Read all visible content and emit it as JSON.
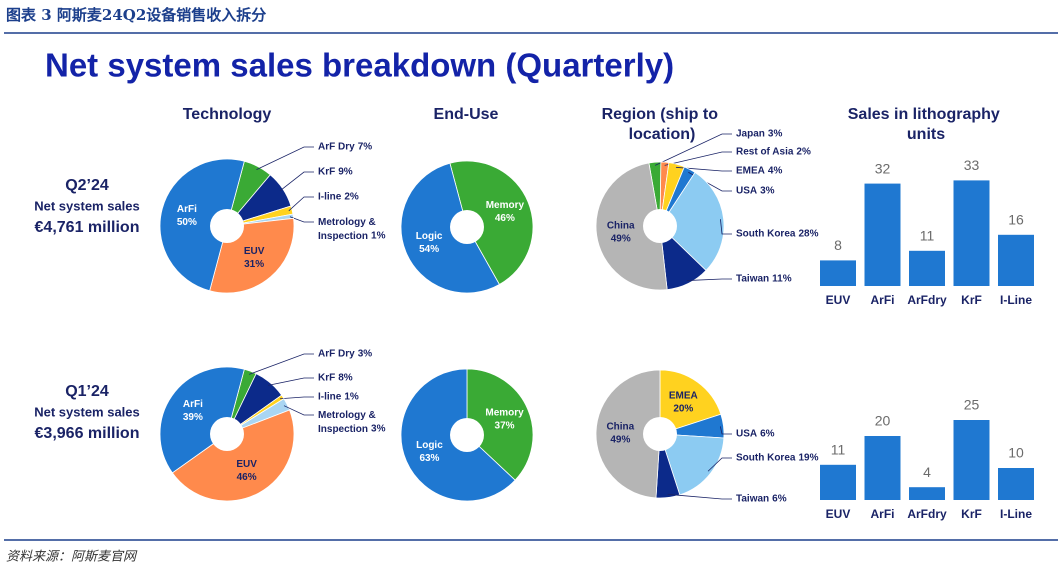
{
  "header": "图表 3  阿斯麦24Q2设备销售收入拆分",
  "title": "Net system sales breakdown (Quarterly)",
  "source": "资料来源：阿斯麦官网",
  "column_titles": [
    "Technology",
    "End-Use",
    "Region (ship to location)",
    "Sales in lithography units"
  ],
  "periods": [
    {
      "quarter": "Q2’24",
      "label": "Net system sales",
      "amount": "€4,761 million"
    },
    {
      "quarter": "Q1’24",
      "label": "Net system sales",
      "amount": "€3,966 million"
    }
  ],
  "chart_data": [
    {
      "type": "pie",
      "categories": [
        "ArF Dry",
        "KrF",
        "I-line",
        "Metrology & Inspection",
        "EUV",
        "ArFi"
      ],
      "values": [
        7,
        9,
        2,
        1,
        31,
        50
      ],
      "value_labels": [
        "7%",
        "9%",
        "2%",
        "1%",
        "31%",
        "50%"
      ],
      "colors": [
        "#3aaa35",
        "#0c2a8a",
        "#ffd21f",
        "#a9d5f2",
        "#ff8a4c",
        "#1f78d1"
      ]
    },
    {
      "type": "pie",
      "categories": [
        "Memory",
        "Logic"
      ],
      "values": [
        46,
        54
      ],
      "value_labels": [
        "46%",
        "54%"
      ],
      "colors": [
        "#3aaa35",
        "#1f78d1"
      ]
    },
    {
      "type": "pie",
      "categories": [
        "Japan",
        "Rest of Asia",
        "EMEA",
        "USA",
        "South Korea",
        "Taiwan",
        "China"
      ],
      "values": [
        3,
        2,
        4,
        3,
        28,
        11,
        49
      ],
      "value_labels": [
        "3%",
        "2%",
        "4%",
        "3%",
        "28%",
        "11%",
        "49%"
      ],
      "colors": [
        "#3aaa35",
        "#ff8a4c",
        "#ffd21f",
        "#1f78d1",
        "#8ccbf2",
        "#0c2a8a",
        "#b5b5b5"
      ]
    },
    {
      "type": "bar",
      "categories": [
        "EUV",
        "ArFi",
        "ArFdry",
        "KrF",
        "I-Line"
      ],
      "values": [
        8,
        32,
        11,
        33,
        16
      ],
      "color": "#1f78d1"
    },
    {
      "type": "pie",
      "categories": [
        "ArF Dry",
        "KrF",
        "I-line",
        "Metrology & Inspection",
        "EUV",
        "ArFi"
      ],
      "values": [
        3,
        8,
        1,
        3,
        46,
        39
      ],
      "value_labels": [
        "3%",
        "8%",
        "1%",
        "3%",
        "46%",
        "39%"
      ],
      "colors": [
        "#3aaa35",
        "#0c2a8a",
        "#ffd21f",
        "#a9d5f2",
        "#ff8a4c",
        "#1f78d1"
      ]
    },
    {
      "type": "pie",
      "categories": [
        "Memory",
        "Logic"
      ],
      "values": [
        37,
        63
      ],
      "value_labels": [
        "37%",
        "63%"
      ],
      "colors": [
        "#3aaa35",
        "#1f78d1"
      ]
    },
    {
      "type": "pie",
      "categories": [
        "EMEA",
        "USA",
        "South Korea",
        "Taiwan",
        "China"
      ],
      "values": [
        20,
        6,
        19,
        6,
        49
      ],
      "value_labels": [
        "20%",
        "6%",
        "19%",
        "6%",
        "49%"
      ],
      "colors": [
        "#ffd21f",
        "#1f78d1",
        "#8ccbf2",
        "#0c2a8a",
        "#b5b5b5"
      ]
    },
    {
      "type": "bar",
      "categories": [
        "EUV",
        "ArFi",
        "ArFdry",
        "KrF",
        "I-Line"
      ],
      "values": [
        11,
        20,
        4,
        25,
        10
      ],
      "color": "#1f78d1"
    }
  ]
}
